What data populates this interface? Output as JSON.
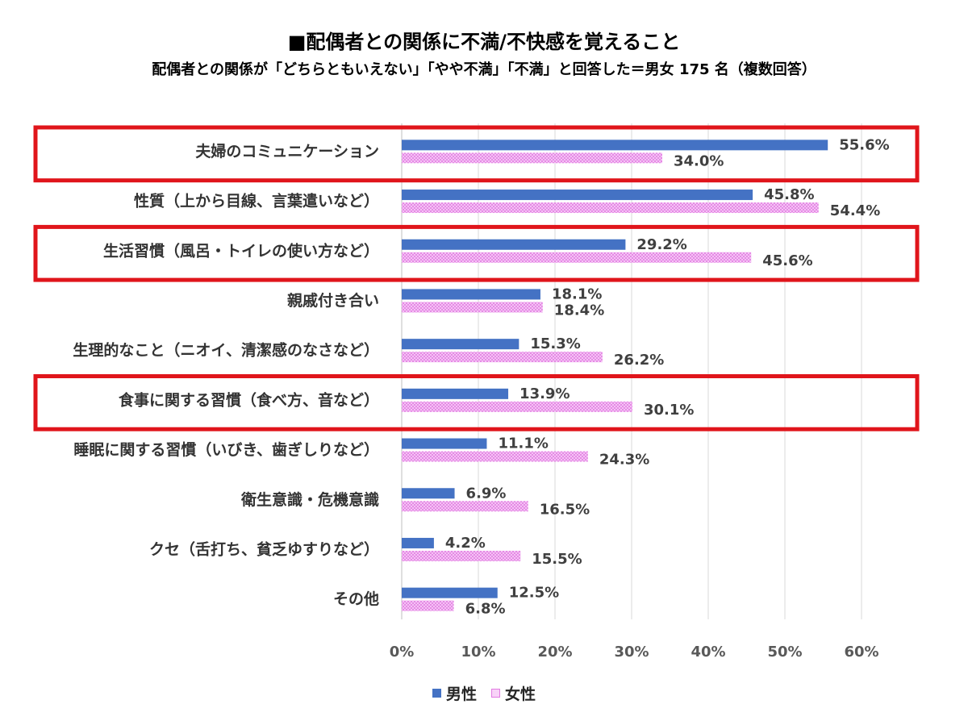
{
  "chart_data": {
    "type": "bar",
    "orientation": "horizontal",
    "title": "■配偶者との関係に不満/不快感を覚えること",
    "subtitle": "配偶者との関係が「どちらともいえない」「やや不満」「不満」と回答した＝男女 175 名（複数回答）",
    "categories": [
      "夫婦のコミュニケーション",
      "性質（上から目線、言葉遣いなど）",
      "生活習慣（風呂・トイレの使い方など）",
      "親戚付き合い",
      "生理的なこと（ニオイ、清潔感のなさなど）",
      "食事に関する習慣（食べ方、音など）",
      "睡眠に関する習慣（いびき、歯ぎしりなど）",
      "衛生意識・危機意識",
      "クセ（舌打ち、貧乏ゆすりなど）",
      "その他"
    ],
    "series": [
      {
        "name": "男性",
        "values": [
          55.6,
          45.8,
          29.2,
          18.1,
          15.3,
          13.9,
          11.1,
          6.9,
          4.2,
          12.5
        ],
        "color": "#4472C4"
      },
      {
        "name": "女性",
        "values": [
          34.0,
          54.4,
          45.6,
          18.4,
          26.2,
          30.1,
          24.3,
          16.5,
          15.5,
          6.8
        ],
        "color": "#F4B6F4"
      }
    ],
    "xlim": [
      0,
      60
    ],
    "ticks": [
      "0%",
      "10%",
      "20%",
      "30%",
      "40%",
      "50%",
      "60%"
    ],
    "unit": "%",
    "grid": true,
    "legend": "bottom",
    "highlighted_categories": [
      0,
      2,
      5
    ],
    "highlight_color": "#E0151B"
  }
}
